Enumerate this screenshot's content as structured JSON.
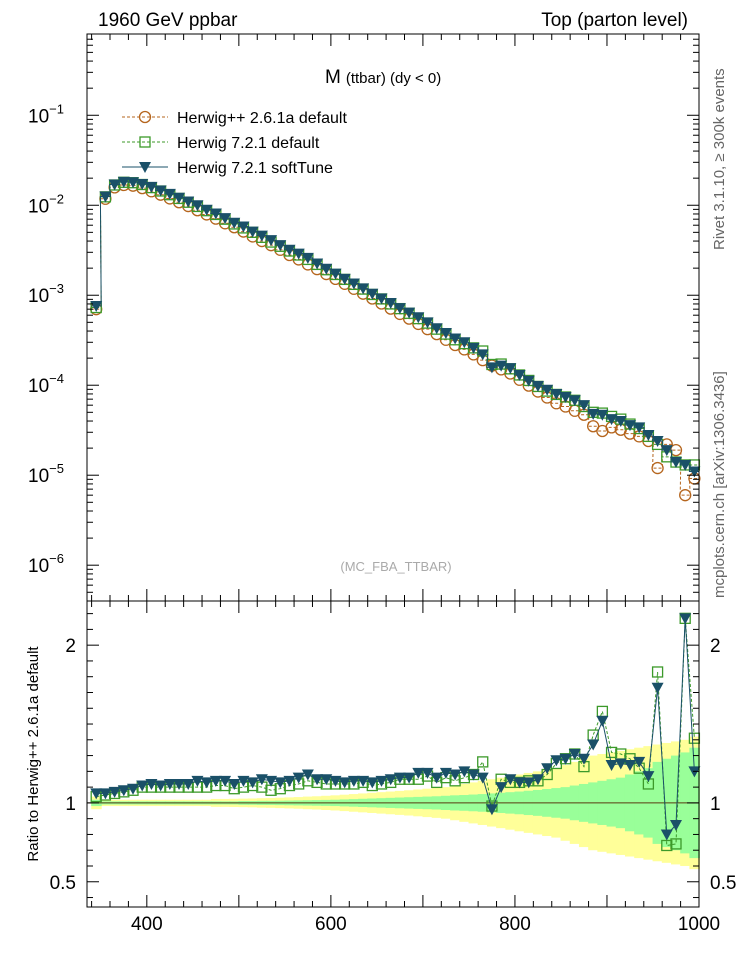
{
  "header": {
    "left": "1960 GeV ppbar",
    "right": "Top (parton level)"
  },
  "side_labels": {
    "rivet": "Rivet 3.1.10, ≥ 300k events",
    "mcplots": "mcplots.cern.ch [arXiv:1306.3436]"
  },
  "chart_data": [
    {
      "type": "line",
      "title_main": "M",
      "title_sub": "(ttbar) (dy < 0)",
      "watermark": "(MC_FBA_TTBAR)",
      "yscale": "log",
      "ylim": [
        4e-07,
        0.8
      ],
      "xlim": [
        335,
        1000
      ],
      "yticks": [
        {
          "v": 0.1,
          "base": "10",
          "exp": "−1"
        },
        {
          "v": 0.01,
          "base": "10",
          "exp": "−2"
        },
        {
          "v": 0.001,
          "base": "10",
          "exp": "−3"
        },
        {
          "v": 0.0001,
          "base": "10",
          "exp": "−4"
        },
        {
          "v": 1e-05,
          "base": "10",
          "exp": "−5"
        },
        {
          "v": 1e-06,
          "base": "10",
          "exp": "−6"
        }
      ],
      "legend": [
        {
          "label": "Herwig++ 2.6.1a default",
          "color": "#b5651d",
          "marker": "circle"
        },
        {
          "label": "Herwig 7.2.1 default",
          "color": "#3c9a2a",
          "marker": "square"
        },
        {
          "label": "Herwig 7.2.1 softTune",
          "color": "#1a5068",
          "marker": "triangle"
        }
      ],
      "x": [
        345,
        355,
        365,
        375,
        385,
        395,
        405,
        415,
        425,
        435,
        445,
        455,
        465,
        475,
        485,
        495,
        505,
        515,
        525,
        535,
        545,
        555,
        565,
        575,
        585,
        595,
        605,
        615,
        625,
        635,
        645,
        655,
        665,
        675,
        685,
        695,
        705,
        715,
        725,
        735,
        745,
        755,
        765,
        775,
        785,
        795,
        805,
        815,
        825,
        835,
        845,
        855,
        865,
        875,
        885,
        895,
        905,
        915,
        925,
        935,
        945,
        955,
        965,
        975,
        985,
        995
      ],
      "series": [
        {
          "name": "Herwig++ 2.6.1a default",
          "values": [
            0.0007,
            0.0118,
            0.0158,
            0.0168,
            0.0165,
            0.0155,
            0.0143,
            0.0131,
            0.0119,
            0.0108,
            0.0098,
            0.0088,
            0.0079,
            0.0071,
            0.0063,
            0.0057,
            0.0051,
            0.0045,
            0.004,
            0.0036,
            0.0032,
            0.0028,
            0.0025,
            0.0022,
            0.00195,
            0.00172,
            0.00152,
            0.00134,
            0.00118,
            0.00104,
            0.00092,
            0.00081,
            0.00071,
            0.00062,
            0.00055,
            0.00048,
            0.00042,
            0.00037,
            0.00032,
            0.00028,
            0.00025,
            0.00022,
            0.00019,
            0.000165,
            0.00015,
            0.000135,
            0.000115,
            9.9e-05,
            8.5e-05,
            7.3e-05,
            6.3e-05,
            5.8e-05,
            5.2e-05,
            4.7e-05,
            3.5e-05,
            3.1e-05,
            3.4e-05,
            3.2e-05,
            2.9e-05,
            2.7e-05,
            2.4e-05,
            1.2e-05,
            2.2e-05,
            1.9e-05,
            6e-06,
            9.2e-06
          ]
        },
        {
          "name": "Herwig 7.2.1 default",
          "values": [
            0.00073,
            0.0124,
            0.0168,
            0.018,
            0.0178,
            0.017,
            0.0157,
            0.0144,
            0.0131,
            0.0119,
            0.0108,
            0.0097,
            0.0087,
            0.0079,
            0.007,
            0.0062,
            0.0056,
            0.005,
            0.0044,
            0.0039,
            0.0035,
            0.0031,
            0.0028,
            0.0025,
            0.0022,
            0.00192,
            0.0017,
            0.0015,
            0.00132,
            0.00117,
            0.00102,
            0.00091,
            0.0008,
            0.00071,
            0.00063,
            0.00055,
            0.00049,
            0.00042,
            0.00037,
            0.00032,
            0.00029,
            0.00026,
            0.00024,
            0.00017,
            0.000172,
            0.000152,
            0.00013,
            0.000113,
            9.7e-05,
            8.6e-05,
            7.9e-05,
            7.4e-05,
            6.8e-05,
            5.8e-05,
            5e-05,
            4.9e-05,
            4.5e-05,
            4.2e-05,
            3.7e-05,
            3.3e-05,
            2.7e-05,
            2.2e-05,
            1.6e-05,
            1.4e-05,
            1.3e-05,
            1.3e-05
          ]
        },
        {
          "name": "Herwig 7.2.1 softTune",
          "values": [
            0.00076,
            0.0125,
            0.017,
            0.0182,
            0.018,
            0.0172,
            0.016,
            0.0146,
            0.0134,
            0.0121,
            0.011,
            0.01,
            0.0089,
            0.0081,
            0.0072,
            0.0064,
            0.0058,
            0.0051,
            0.0046,
            0.0041,
            0.0036,
            0.0032,
            0.0029,
            0.0026,
            0.00225,
            0.00197,
            0.00174,
            0.00152,
            0.00135,
            0.00119,
            0.00104,
            0.00092,
            0.00082,
            0.00072,
            0.00064,
            0.00057,
            0.0005,
            0.00043,
            0.00038,
            0.00033,
            0.0003,
            0.00026,
            0.00022,
            0.000158,
            0.000165,
            0.000155,
            0.00013,
            0.000112,
            9.8e-05,
            8.9e-05,
            8e-05,
            7.4e-05,
            6.8e-05,
            6e-05,
            4.8e-05,
            4.7e-05,
            4.2e-05,
            4e-05,
            3.6e-05,
            3.4e-05,
            2.8e-05,
            2.4e-05,
            1.9e-05,
            1.4e-05,
            1.3e-05,
            1.1e-05
          ]
        }
      ]
    },
    {
      "type": "line",
      "ylabel": "Ratio to Herwig++ 2.6.1a default",
      "xlim": [
        335,
        1000
      ],
      "ylim": [
        0.34,
        2.28
      ],
      "yticks": [
        0.5,
        1,
        2
      ],
      "ytick_labels": [
        "0.5",
        "1",
        "2"
      ],
      "xticks": [
        400,
        600,
        800,
        1000
      ],
      "xtick_labels": [
        "400",
        "600",
        "800",
        "1000"
      ],
      "bands": {
        "x": [
          345,
          355,
          365,
          375,
          385,
          395,
          405,
          415,
          425,
          435,
          445,
          455,
          465,
          475,
          485,
          495,
          505,
          515,
          525,
          535,
          545,
          555,
          565,
          575,
          585,
          595,
          605,
          615,
          625,
          635,
          645,
          655,
          665,
          675,
          685,
          695,
          705,
          715,
          725,
          735,
          745,
          755,
          765,
          775,
          785,
          795,
          805,
          815,
          825,
          835,
          845,
          855,
          865,
          875,
          885,
          895,
          905,
          915,
          925,
          935,
          945,
          955,
          965,
          975,
          985,
          995
        ],
        "green_half": [
          0.02,
          0.01,
          0.01,
          0.01,
          0.01,
          0.01,
          0.01,
          0.01,
          0.01,
          0.01,
          0.01,
          0.01,
          0.01,
          0.01,
          0.01,
          0.01,
          0.012,
          0.012,
          0.013,
          0.013,
          0.014,
          0.015,
          0.016,
          0.017,
          0.018,
          0.019,
          0.02,
          0.022,
          0.024,
          0.026,
          0.028,
          0.03,
          0.032,
          0.034,
          0.036,
          0.038,
          0.04,
          0.042,
          0.045,
          0.048,
          0.05,
          0.053,
          0.056,
          0.06,
          0.064,
          0.068,
          0.072,
          0.077,
          0.082,
          0.088,
          0.094,
          0.1,
          0.11,
          0.12,
          0.13,
          0.14,
          0.15,
          0.16,
          0.18,
          0.2,
          0.22,
          0.26,
          0.28,
          0.3,
          0.32,
          0.35
        ],
        "yellow_half": [
          0.04,
          0.02,
          0.02,
          0.02,
          0.02,
          0.02,
          0.02,
          0.02,
          0.02,
          0.02,
          0.02,
          0.02,
          0.02,
          0.025,
          0.025,
          0.026,
          0.027,
          0.028,
          0.03,
          0.031,
          0.033,
          0.035,
          0.037,
          0.04,
          0.042,
          0.045,
          0.048,
          0.052,
          0.056,
          0.06,
          0.064,
          0.068,
          0.072,
          0.076,
          0.08,
          0.085,
          0.09,
          0.095,
          0.1,
          0.11,
          0.12,
          0.13,
          0.14,
          0.15,
          0.16,
          0.17,
          0.18,
          0.19,
          0.2,
          0.21,
          0.22,
          0.24,
          0.26,
          0.28,
          0.3,
          0.31,
          0.32,
          0.33,
          0.34,
          0.35,
          0.36,
          0.37,
          0.38,
          0.39,
          0.4,
          0.42
        ]
      },
      "series": [
        {
          "name": "Herwig 7.2.1 default",
          "values": [
            1.04,
            1.05,
            1.06,
            1.07,
            1.08,
            1.1,
            1.1,
            1.1,
            1.1,
            1.1,
            1.1,
            1.1,
            1.1,
            1.11,
            1.11,
            1.09,
            1.1,
            1.11,
            1.1,
            1.08,
            1.09,
            1.11,
            1.12,
            1.14,
            1.13,
            1.12,
            1.12,
            1.12,
            1.12,
            1.13,
            1.11,
            1.12,
            1.13,
            1.15,
            1.15,
            1.15,
            1.17,
            1.13,
            1.16,
            1.14,
            1.16,
            1.18,
            1.26,
            0.98,
            1.15,
            1.13,
            1.13,
            1.14,
            1.14,
            1.18,
            1.25,
            1.28,
            1.31,
            1.23,
            1.43,
            1.58,
            1.32,
            1.31,
            1.28,
            1.22,
            1.12,
            1.83,
            0.73,
            0.74,
            2.17,
            1.41
          ]
        },
        {
          "name": "Herwig 7.2.1 softTune",
          "values": [
            1.06,
            1.06,
            1.07,
            1.08,
            1.09,
            1.11,
            1.12,
            1.11,
            1.12,
            1.12,
            1.12,
            1.14,
            1.13,
            1.14,
            1.14,
            1.12,
            1.14,
            1.13,
            1.15,
            1.14,
            1.13,
            1.14,
            1.16,
            1.18,
            1.15,
            1.15,
            1.14,
            1.13,
            1.14,
            1.14,
            1.13,
            1.14,
            1.15,
            1.16,
            1.16,
            1.19,
            1.19,
            1.16,
            1.19,
            1.18,
            1.2,
            1.18,
            1.16,
            0.96,
            1.1,
            1.15,
            1.13,
            1.13,
            1.15,
            1.22,
            1.27,
            1.28,
            1.31,
            1.28,
            1.37,
            1.52,
            1.24,
            1.25,
            1.24,
            1.26,
            1.17,
            1.73,
            0.8,
            0.86,
            2.17,
            1.2
          ]
        }
      ]
    }
  ]
}
